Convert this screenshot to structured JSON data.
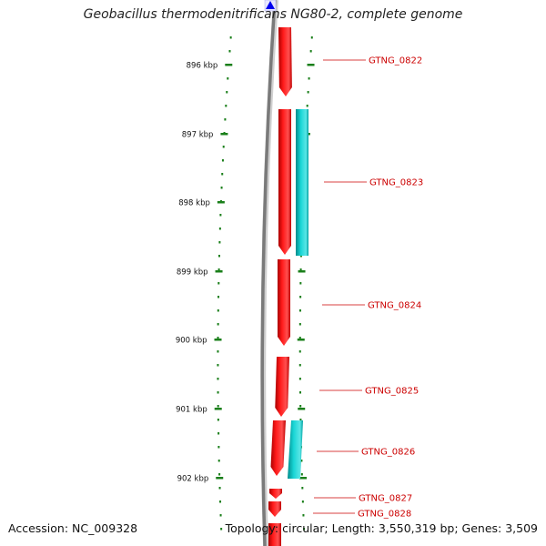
{
  "genome": {
    "title": "Geobacillus thermodenitrificans NG80-2, complete genome",
    "accession": "Accession: NC_009328",
    "topology_summary": "Topology: circular; Length: 3,550,319 bp; Genes: 3,509"
  },
  "navigation": {
    "scroll_up_icon": "triangle-up-icon"
  },
  "ruler": {
    "labels": [
      "896 kbp",
      "897 kbp",
      "898 kbp",
      "899 kbp",
      "900 kbp",
      "901 kbp",
      "902 kbp"
    ],
    "label_color": "#111111",
    "tick_color": "#1a7f1a"
  },
  "genes": [
    {
      "name": "GTNG_0822"
    },
    {
      "name": "GTNG_0823"
    },
    {
      "name": "GTNG_0824"
    },
    {
      "name": "GTNG_0825"
    },
    {
      "name": "GTNG_0826"
    },
    {
      "name": "GTNG_0827"
    },
    {
      "name": "GTNG_0828"
    }
  ],
  "colors": {
    "gene_forward": "#ff0000",
    "gene_secondary": "#00c8c8",
    "gene_label": "#cc0000",
    "backbone": "#808080",
    "nav_triangle": "#0000ff"
  }
}
